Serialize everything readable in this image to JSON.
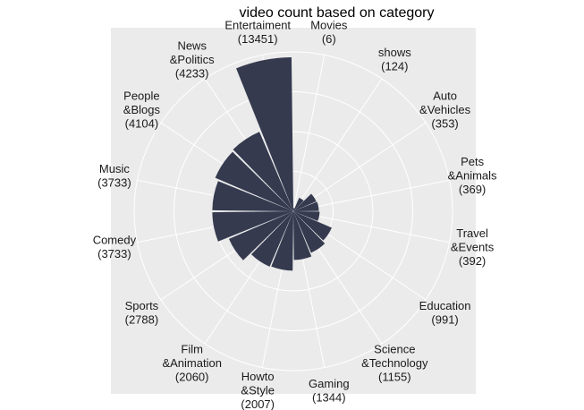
{
  "chart_data": {
    "type": "bar",
    "coord": "polar",
    "title": "video count based on category",
    "xlabel": "",
    "ylabel": "",
    "categories": [
      "Movies",
      "shows",
      "Auto &Vehicles",
      "Pets &Animals",
      "Travel &Events",
      "Education",
      "Science &Technology",
      "Gaming",
      "Howto &Style",
      "Film &Animation",
      "Sports",
      "Comedy",
      "Music",
      "People &Blogs",
      "News &Politics",
      "Entertaiment"
    ],
    "values": [
      6,
      124,
      353,
      369,
      392,
      991,
      1155,
      1344,
      2007,
      2060,
      2788,
      3733,
      3733,
      4104,
      4233,
      13451
    ],
    "label_lines": [
      [
        "Movies",
        "(6)"
      ],
      [
        "shows",
        "(124)"
      ],
      [
        "Auto",
        "&Vehicles",
        "(353)"
      ],
      [
        "Pets",
        "&Animals",
        "(369)"
      ],
      [
        "Travel",
        "&Events",
        "(392)"
      ],
      [
        "Education",
        "(991)"
      ],
      [
        "Science",
        "&Technology",
        "(1155)"
      ],
      [
        "Gaming",
        "(1344)"
      ],
      [
        "Howto",
        "&Style",
        "(2007)"
      ],
      [
        "Film",
        "&Animation",
        "(2060)"
      ],
      [
        "Sports",
        "(2788)"
      ],
      [
        "Comedy",
        "(3733)"
      ],
      [
        "Music",
        "(3733)"
      ],
      [
        "People",
        "&Blogs",
        "(4104)"
      ],
      [
        "News",
        "&Politics",
        "(4233)"
      ],
      [
        "Entertaiment",
        "(13451)"
      ]
    ],
    "ylim": [
      0,
      13451
    ],
    "grid": true,
    "legend": "none",
    "bar_color": "#353a4f",
    "panel_color": "#ebebeb",
    "grid_color": "#ffffff"
  }
}
